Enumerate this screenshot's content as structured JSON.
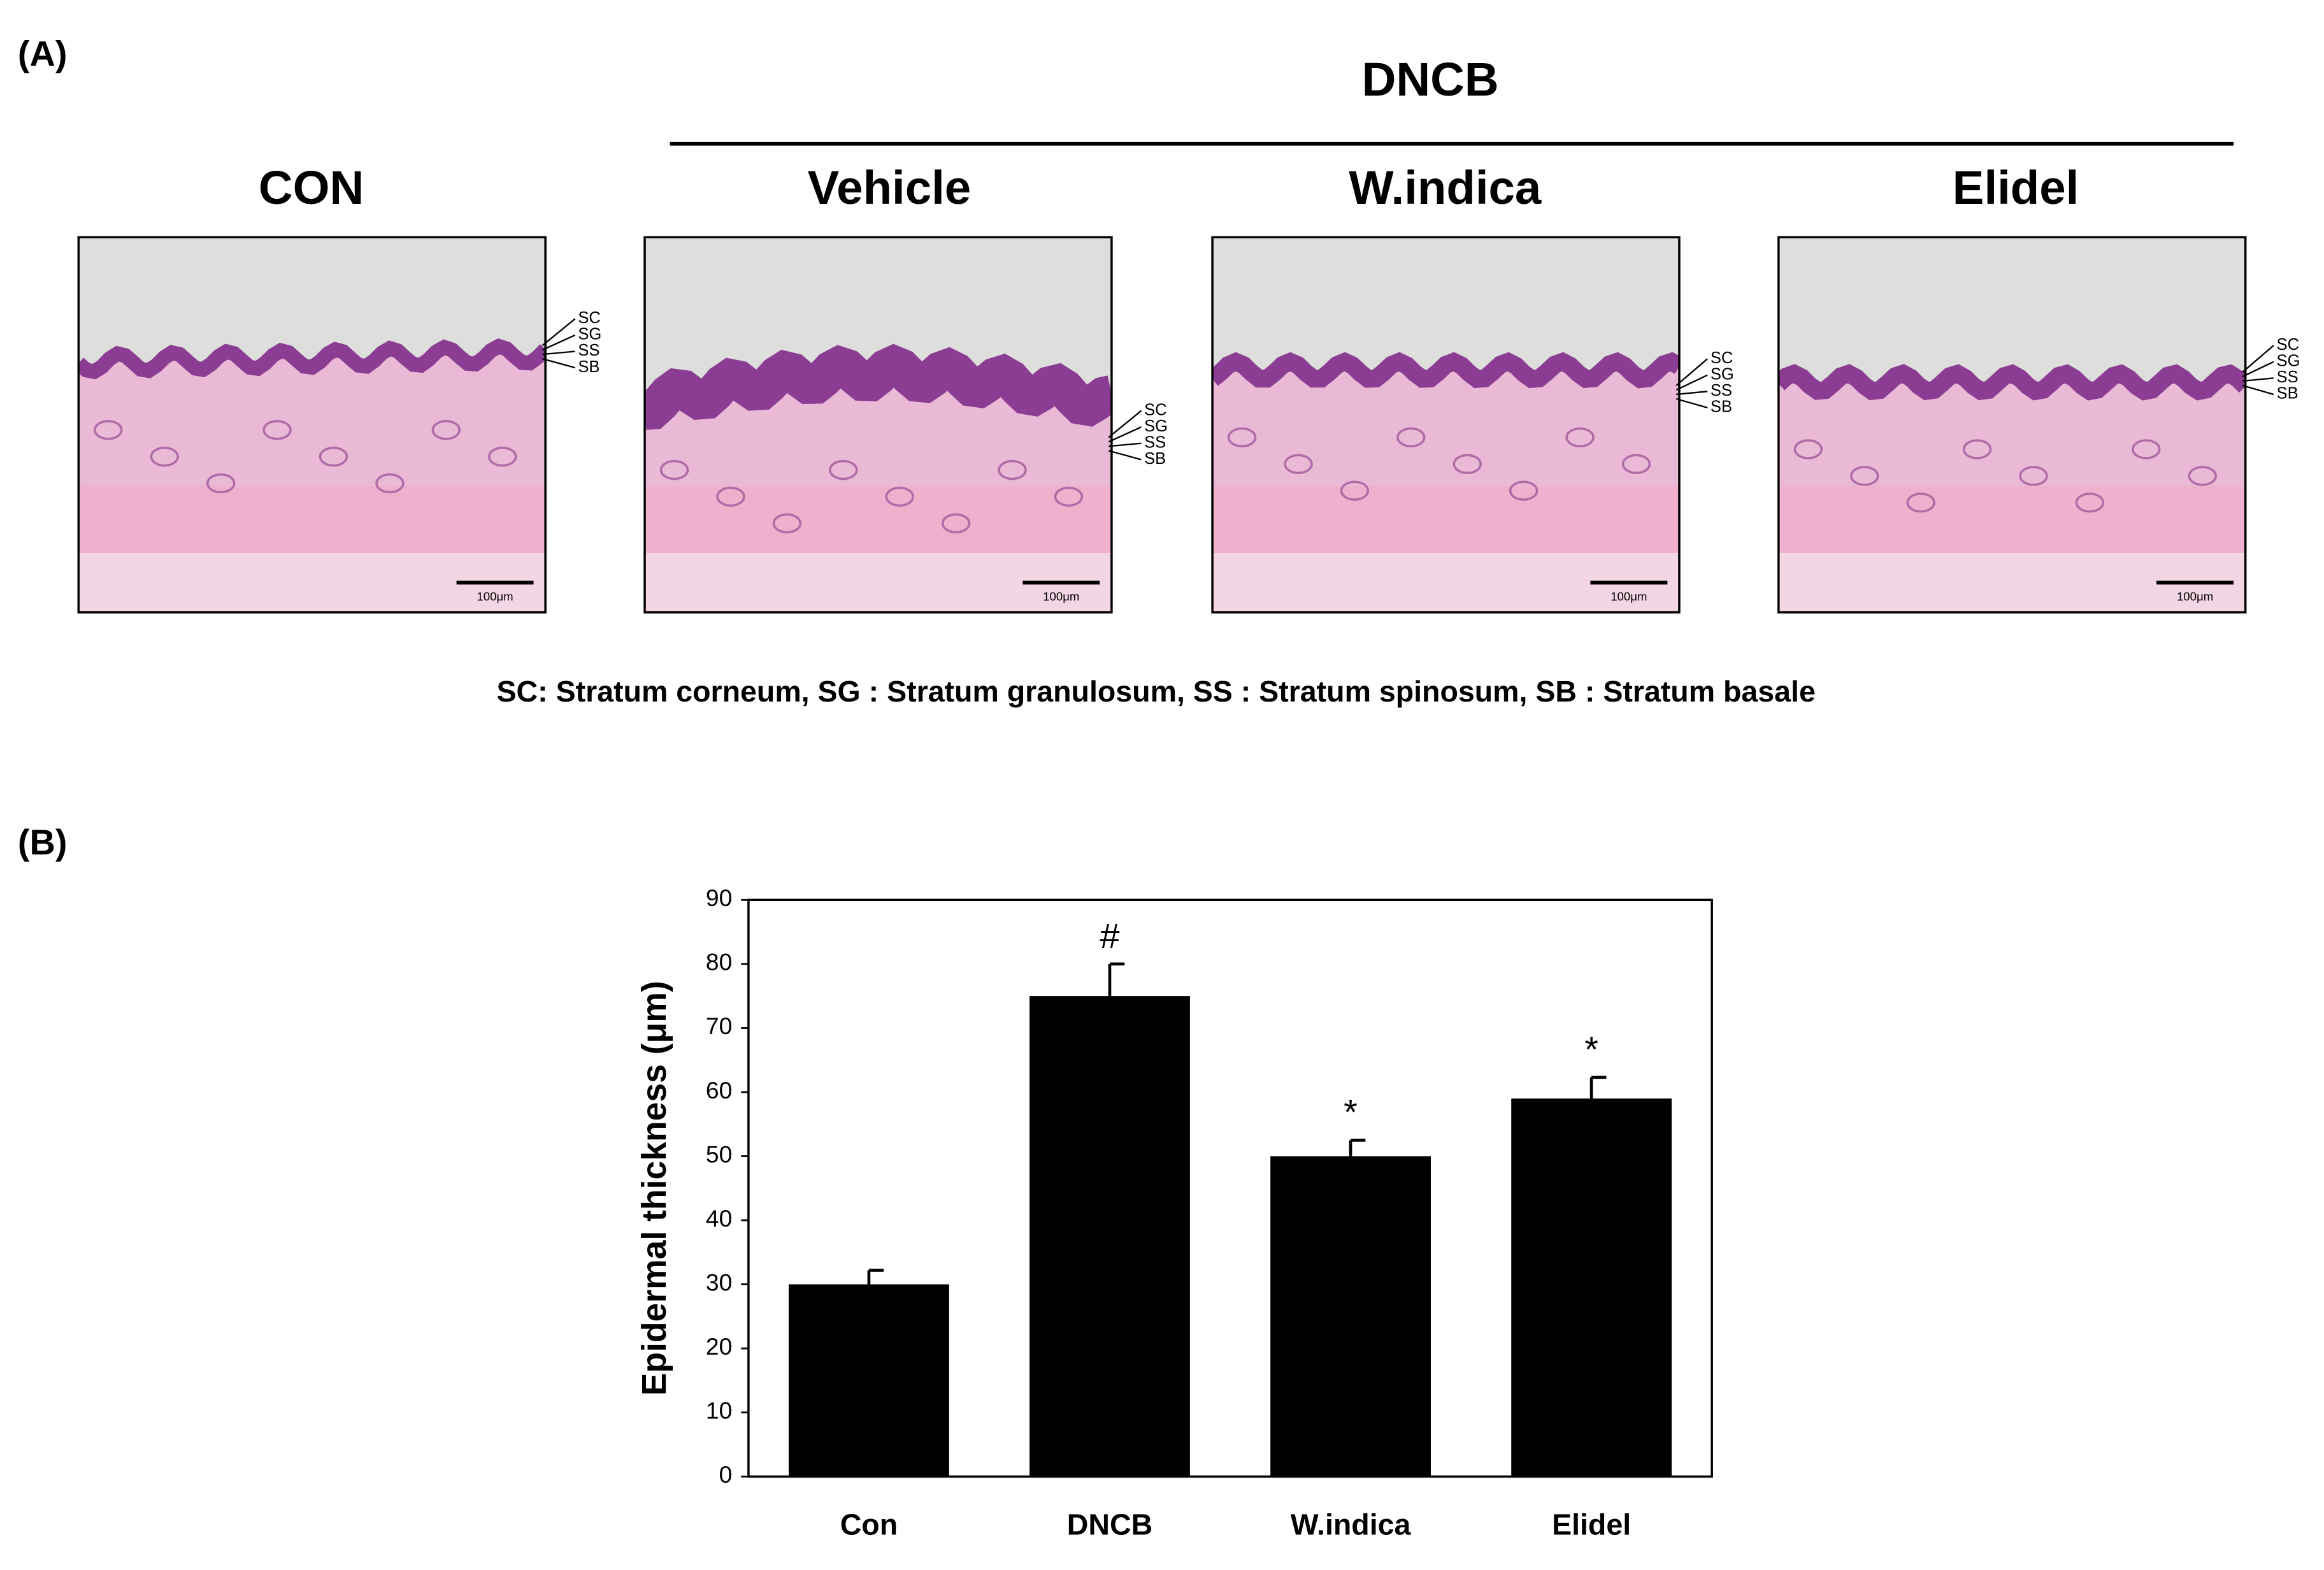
{
  "panel_a": {
    "label": "(A)",
    "group_label": "DNCB",
    "panels": [
      {
        "title": "CON",
        "layers": [
          "SC",
          "SG",
          "SS",
          "SB"
        ],
        "scale_bar": "100μm"
      },
      {
        "title": "Vehicle",
        "layers": [
          "SC",
          "SG",
          "SS",
          "SB"
        ],
        "scale_bar": "100μm"
      },
      {
        "title": "W.indica",
        "layers": [
          "SC",
          "SG",
          "SS",
          "SB"
        ],
        "scale_bar": "100μm"
      },
      {
        "title": "Elidel",
        "layers": [
          "SC",
          "SG",
          "SS",
          "SB"
        ],
        "scale_bar": "100μm"
      }
    ],
    "legend": "SC: Stratum corneum,  SG : Stratum granulosum,  SS : Stratum spinosum,  SB : Stratum basale"
  },
  "panel_b_label": "(B)",
  "chart_data": {
    "type": "bar",
    "ylabel": "Epidermal thickness (μm)",
    "categories": [
      "Con",
      "DNCB",
      "W.indica",
      "Elidel"
    ],
    "values": [
      30,
      75,
      50,
      59
    ],
    "errors": [
      2.2,
      5,
      2.5,
      3.3
    ],
    "annotations": [
      null,
      "#",
      "*",
      "*"
    ],
    "color": "#000000",
    "ylim": [
      0,
      90
    ],
    "yticks": [
      0,
      10,
      20,
      30,
      40,
      50,
      60,
      70,
      80,
      90
    ],
    "grid": false
  }
}
